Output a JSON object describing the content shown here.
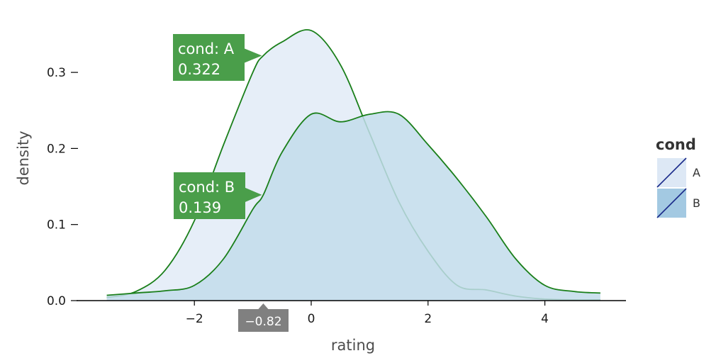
{
  "chart_data": {
    "type": "area",
    "xlabel": "rating",
    "ylabel": "density",
    "xlim": [
      -3.5,
      4.95
    ],
    "ylim": [
      0,
      0.36
    ],
    "x_ticks": [
      -2,
      0,
      2,
      4
    ],
    "x_tick_labels": [
      "−2",
      "0",
      "2",
      "4"
    ],
    "y_ticks": [
      0.0,
      0.1,
      0.2,
      0.3
    ],
    "y_tick_labels": [
      "0.0",
      "0.1",
      "0.2",
      "0.3"
    ],
    "grid": false,
    "legend": {
      "title": "cond",
      "placement": "right",
      "entries": [
        {
          "label": "A",
          "fill": "#dde8f5"
        },
        {
          "label": "B",
          "fill": "#a3c9e2"
        }
      ]
    },
    "series": [
      {
        "name": "A",
        "fill": "#e6eef8",
        "stroke": "#1a7f1a",
        "x": [
          -3.5,
          -3.0,
          -2.5,
          -2.0,
          -1.5,
          -1.0,
          -0.82,
          -0.5,
          0.0,
          0.5,
          1.0,
          1.5,
          2.0,
          2.5,
          3.0,
          3.5,
          4.0,
          4.5,
          4.95
        ],
        "y": [
          0.004,
          0.012,
          0.04,
          0.105,
          0.205,
          0.3,
          0.322,
          0.34,
          0.355,
          0.31,
          0.22,
          0.13,
          0.065,
          0.02,
          0.014,
          0.006,
          0.002,
          0.001,
          0.001
        ]
      },
      {
        "name": "B",
        "fill": "#c2dceb",
        "stroke": "#1a7f1a",
        "x": [
          -3.5,
          -3.0,
          -2.5,
          -2.0,
          -1.5,
          -1.0,
          -0.82,
          -0.5,
          0.0,
          0.5,
          1.0,
          1.5,
          2.0,
          2.5,
          3.0,
          3.5,
          4.0,
          4.5,
          4.95
        ],
        "y": [
          0.007,
          0.01,
          0.013,
          0.02,
          0.055,
          0.12,
          0.139,
          0.195,
          0.245,
          0.235,
          0.245,
          0.245,
          0.205,
          0.16,
          0.11,
          0.055,
          0.02,
          0.012,
          0.01
        ]
      }
    ],
    "annotations": {
      "x_value_label": "−0.82",
      "tooltips": [
        {
          "label_line": "cond: A",
          "value_line": "0.322",
          "color": "#4a9e4a"
        },
        {
          "label_line": "cond: B",
          "value_line": "0.139",
          "color": "#4a9e4a"
        }
      ]
    }
  }
}
